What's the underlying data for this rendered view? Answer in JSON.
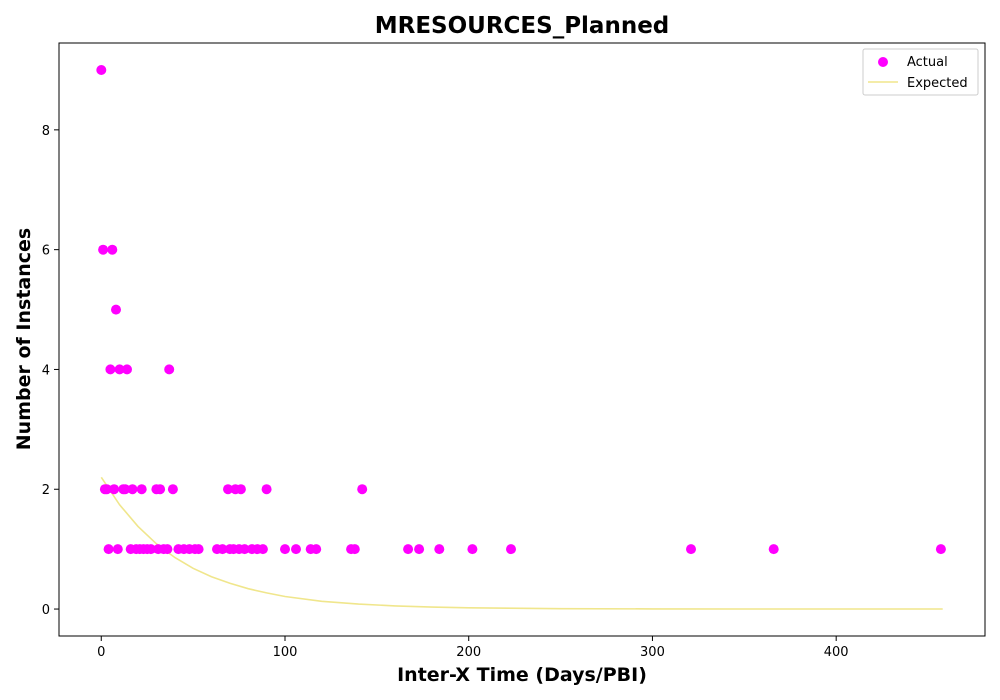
{
  "chart_data": {
    "type": "scatter",
    "title": "MRESOURCES_Planned",
    "xlabel": "Inter-X Time (Days/PBI)",
    "ylabel": "Number of Instances",
    "xlim": [
      -23,
      481
    ],
    "ylim": [
      -0.45,
      9.45
    ],
    "xticks": [
      0,
      100,
      200,
      300,
      400
    ],
    "yticks": [
      0,
      2,
      4,
      6,
      8
    ],
    "grid": false,
    "legend": {
      "position": "top-right"
    },
    "series": [
      {
        "name": "Actual",
        "kind": "scatter",
        "color": "#ff00ff",
        "points": [
          [
            0,
            9
          ],
          [
            1,
            6
          ],
          [
            2,
            2
          ],
          [
            3,
            2
          ],
          [
            4,
            1
          ],
          [
            5,
            4
          ],
          [
            6,
            6
          ],
          [
            7,
            2
          ],
          [
            8,
            5
          ],
          [
            9,
            1
          ],
          [
            10,
            4
          ],
          [
            12,
            2
          ],
          [
            13,
            2
          ],
          [
            14,
            4
          ],
          [
            16,
            1
          ],
          [
            17,
            2
          ],
          [
            19,
            1
          ],
          [
            21,
            1
          ],
          [
            22,
            2
          ],
          [
            23,
            1
          ],
          [
            25,
            1
          ],
          [
            27,
            1
          ],
          [
            30,
            2
          ],
          [
            31,
            1
          ],
          [
            32,
            2
          ],
          [
            34,
            1
          ],
          [
            36,
            1
          ],
          [
            37,
            4
          ],
          [
            39,
            2
          ],
          [
            42,
            1
          ],
          [
            45,
            1
          ],
          [
            48,
            1
          ],
          [
            51,
            1
          ],
          [
            53,
            1
          ],
          [
            63,
            1
          ],
          [
            66,
            1
          ],
          [
            69,
            2
          ],
          [
            70,
            1
          ],
          [
            72,
            1
          ],
          [
            73,
            2
          ],
          [
            75,
            1
          ],
          [
            76,
            2
          ],
          [
            78,
            1
          ],
          [
            82,
            1
          ],
          [
            85,
            1
          ],
          [
            88,
            1
          ],
          [
            90,
            2
          ],
          [
            100,
            1
          ],
          [
            106,
            1
          ],
          [
            114,
            1
          ],
          [
            117,
            1
          ],
          [
            136,
            1
          ],
          [
            138,
            1
          ],
          [
            142,
            2
          ],
          [
            167,
            1
          ],
          [
            173,
            1
          ],
          [
            184,
            1
          ],
          [
            202,
            1
          ],
          [
            223,
            1
          ],
          [
            321,
            1
          ],
          [
            366,
            1
          ],
          [
            457,
            1
          ]
        ]
      },
      {
        "name": "Expected",
        "kind": "line",
        "color": "#f0e68c",
        "points": [
          [
            0,
            2.2
          ],
          [
            10,
            1.74
          ],
          [
            20,
            1.38
          ],
          [
            30,
            1.09
          ],
          [
            40,
            0.86
          ],
          [
            50,
            0.68
          ],
          [
            60,
            0.54
          ],
          [
            70,
            0.43
          ],
          [
            80,
            0.34
          ],
          [
            90,
            0.27
          ],
          [
            100,
            0.21
          ],
          [
            120,
            0.13
          ],
          [
            140,
            0.083
          ],
          [
            160,
            0.052
          ],
          [
            180,
            0.033
          ],
          [
            200,
            0.02
          ],
          [
            250,
            0.006
          ],
          [
            300,
            0.002
          ],
          [
            350,
            0.0005
          ],
          [
            400,
            0.0002
          ],
          [
            458,
            0.0
          ]
        ]
      }
    ]
  }
}
